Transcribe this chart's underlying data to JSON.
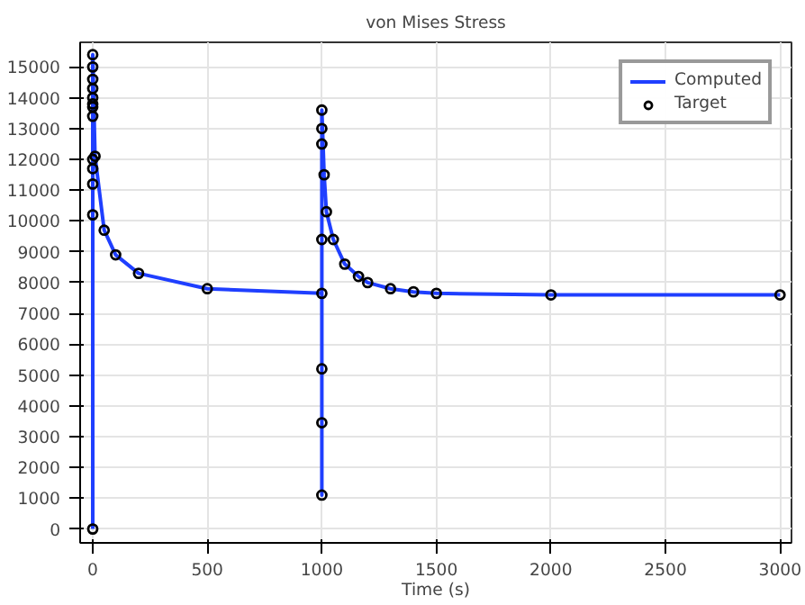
{
  "chart_data": {
    "type": "line",
    "title": "von Mises Stress",
    "xlabel": "Time (s)",
    "xlim": [
      -55,
      3050
    ],
    "ylim": [
      -450,
      15800
    ],
    "xticks": [
      0,
      500,
      1000,
      1500,
      2000,
      2500,
      3000
    ],
    "yticks": [
      0,
      1000,
      2000,
      3000,
      4000,
      5000,
      6000,
      7000,
      8000,
      9000,
      10000,
      11000,
      12000,
      13000,
      14000,
      15000
    ],
    "grid": true,
    "legend": "top right",
    "series": [
      {
        "name": "Computed",
        "color": "#1f3fff",
        "marker": "none",
        "line_style": "solid",
        "x": [
          0,
          0,
          0,
          0,
          0,
          0,
          0,
          0,
          0,
          0,
          0,
          0,
          0,
          10,
          50,
          100,
          200,
          500,
          1000,
          1000,
          1000,
          1000,
          1000,
          1000,
          1000,
          1000,
          1010,
          1020,
          1050,
          1100,
          1160,
          1200,
          1300,
          1400,
          1500,
          2000,
          3000
        ],
        "values": [
          0,
          10200,
          11200,
          11700,
          12000,
          13400,
          13700,
          13800,
          14000,
          14300,
          14600,
          15000,
          15400,
          12100,
          9700,
          8900,
          8300,
          7800,
          7650,
          1100,
          3450,
          5200,
          9400,
          12500,
          13000,
          13600,
          11500,
          10300,
          9400,
          8600,
          8200,
          8000,
          7800,
          7700,
          7650,
          7600,
          7600
        ]
      },
      {
        "name": "Target",
        "type": "scatter",
        "color": "#000000",
        "marker": "circle",
        "x": [
          0,
          0,
          0,
          0,
          0,
          0,
          0,
          0,
          0,
          0,
          0,
          0,
          0,
          10,
          50,
          100,
          200,
          500,
          1000,
          1000,
          1000,
          1000,
          1000,
          1000,
          1000,
          1000,
          1010,
          1020,
          1050,
          1100,
          1160,
          1200,
          1300,
          1400,
          1500,
          2000,
          3000
        ],
        "values": [
          0,
          10200,
          11200,
          11700,
          12000,
          13400,
          13700,
          13800,
          14000,
          14300,
          14600,
          15000,
          15400,
          12100,
          9700,
          8900,
          8300,
          7800,
          7650,
          1100,
          3450,
          5200,
          9400,
          12500,
          13000,
          13600,
          11500,
          10300,
          9400,
          8600,
          8200,
          8000,
          7800,
          7700,
          7650,
          7600,
          7600
        ]
      }
    ]
  }
}
